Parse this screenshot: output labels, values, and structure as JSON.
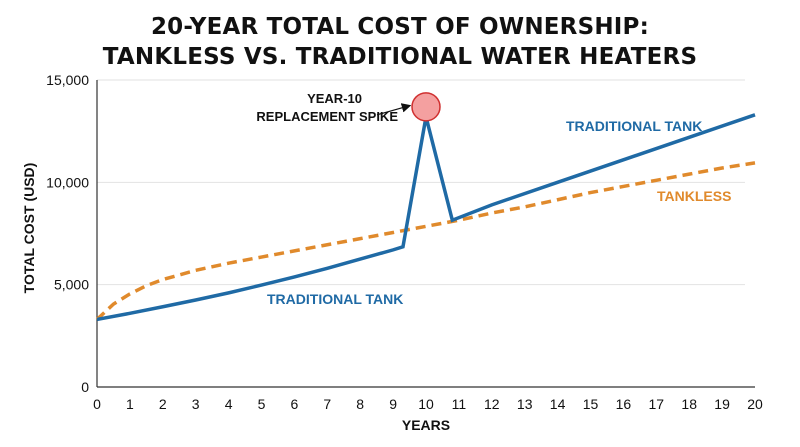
{
  "chart_data": {
    "type": "line",
    "title_lines": [
      "20-YEAR TOTAL COST OF OWNERSHIP:",
      "TANKLESS VS. TRADITIONAL WATER HEATERS"
    ],
    "xlabel": "YEARS",
    "ylabel": "TOTAL COST (USD)",
    "xlim": [
      0,
      20
    ],
    "ylim": [
      0,
      15000
    ],
    "x_ticks": [
      0,
      1,
      2,
      3,
      4,
      5,
      6,
      7,
      8,
      9,
      10,
      11,
      12,
      13,
      14,
      15,
      16,
      17,
      18,
      19,
      20
    ],
    "y_ticks": [
      0,
      5000,
      10000,
      15000
    ],
    "y_tick_labels": [
      "0",
      "5,000",
      "10,000",
      "15,000"
    ],
    "grid": "horizontal",
    "series": [
      {
        "name": "TRADITIONAL TANK",
        "color": "#1f6aa5",
        "style": "solid",
        "x": [
          0,
          1,
          2,
          3,
          4,
          5,
          6,
          7,
          8,
          9,
          9.3,
          10,
          10.8,
          12,
          14,
          16,
          18,
          20
        ],
        "y": [
          3300,
          3600,
          3920,
          4250,
          4600,
          4980,
          5380,
          5800,
          6250,
          6700,
          6850,
          13200,
          8150,
          8900,
          10000,
          11100,
          12200,
          13300
        ]
      },
      {
        "name": "TANKLESS",
        "color": "#e08a2c",
        "style": "dashed",
        "x": [
          0,
          0.5,
          1,
          1.5,
          2,
          3,
          4,
          5,
          6,
          7,
          8,
          9,
          10,
          11,
          12,
          13,
          14,
          15,
          16,
          17,
          18,
          19,
          20
        ],
        "y": [
          3300,
          4050,
          4550,
          4950,
          5250,
          5700,
          6050,
          6350,
          6650,
          6950,
          7250,
          7550,
          7850,
          8150,
          8500,
          8800,
          9150,
          9500,
          9800,
          10100,
          10400,
          10700,
          10950
        ]
      }
    ],
    "labels": {
      "traditional_upper": "TRADITIONAL TANK",
      "traditional_lower": "TRADITIONAL TANK",
      "tankless": "TANKLESS"
    },
    "annotation": {
      "lines": [
        "YEAR-10",
        "REPLACEMENT SPIKE"
      ],
      "x": 10,
      "y": 13200,
      "marker_color": "#f4a0a0",
      "marker_stroke": "#d03030"
    }
  }
}
